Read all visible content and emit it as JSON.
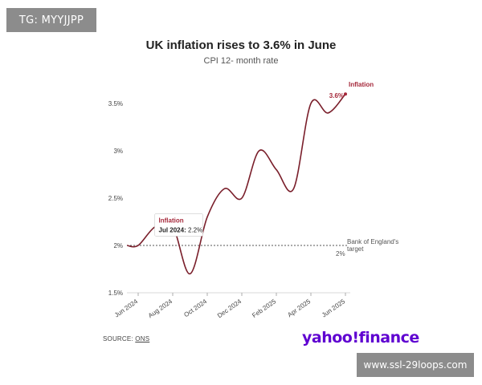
{
  "watermark": {
    "tag_text": "TG: MYYJJPP",
    "url_text": "www.ssl-29loops.com",
    "logo_text": "yahoo!finance"
  },
  "header": {
    "title": "UK inflation rises to 3.6% in June",
    "subtitle": "CPI 12- month rate"
  },
  "footer": {
    "source_label": "SOURCE:",
    "source_link": "ONS"
  },
  "colors": {
    "line": "#7a1f2b",
    "accent": "#a5283a",
    "target_line": "#555555",
    "logo": "#5f01d1"
  },
  "chart_data": {
    "type": "line",
    "title": "UK inflation rises to 3.6% in June",
    "subtitle": "CPI 12- month rate",
    "xlabel": "",
    "ylabel": "",
    "ylim": [
      1.5,
      3.6
    ],
    "x_tick_labels": [
      "Jun 2024",
      "Aug 2024",
      "Oct 2024",
      "Dec 2024",
      "Feb 2025",
      "Apr 2025",
      "Jun 2025"
    ],
    "y_tick_labels": [
      "1.5%",
      "2%",
      "2.5%",
      "3%",
      "3.5%"
    ],
    "y_ticks": [
      1.5,
      2.0,
      2.5,
      3.0,
      3.5
    ],
    "grid": false,
    "series": [
      {
        "name": "Inflation",
        "x": [
          "Jun 2024",
          "Jul 2024",
          "Aug 2024",
          "Sep 2024",
          "Oct 2024",
          "Nov 2024",
          "Dec 2024",
          "Jan 2025",
          "Feb 2025",
          "Mar 2025",
          "Apr 2025",
          "May 2025",
          "Jun 2025"
        ],
        "values": [
          2.0,
          2.2,
          2.2,
          1.7,
          2.3,
          2.6,
          2.5,
          3.0,
          2.8,
          2.6,
          3.5,
          3.4,
          3.6
        ]
      }
    ],
    "reference_line": {
      "value": 2.0,
      "label_line1": "Bank of England's",
      "label_line2": "target",
      "value_label": "2%"
    },
    "tooltip": {
      "series": "Inflation",
      "date": "Jul 2024:",
      "value": "2.2%"
    },
    "end_label": {
      "series": "Inflation",
      "value": "3.6%"
    }
  }
}
